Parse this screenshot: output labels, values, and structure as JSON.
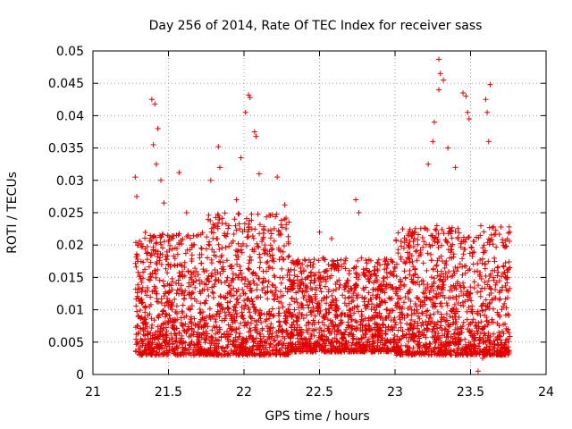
{
  "chart_data": {
    "type": "scatter",
    "title": "Day 256 of 2014, Rate Of TEC Index for receiver sass",
    "xlabel": "GPS time / hours",
    "ylabel": "ROTI / TECUs",
    "xlim": [
      21,
      24
    ],
    "ylim": [
      0,
      0.05
    ],
    "x_ticks": [
      "21",
      "21.5",
      "22",
      "22.5",
      "23",
      "23.5",
      "24"
    ],
    "y_ticks": [
      "0",
      "0.005",
      "0.01",
      "0.015",
      "0.02",
      "0.025",
      "0.03",
      "0.035",
      "0.04",
      "0.045",
      "0.05"
    ],
    "grid": true,
    "marker": "plus",
    "series_color": "#e00000",
    "x_range_of_points": [
      21.28,
      21.76
    ],
    "x_range_of_points_2": [
      21.76,
      23.0
    ],
    "x_range_of_points_3": [
      23.0,
      23.76
    ],
    "notable_points": [
      {
        "x": 21.28,
        "y": 0.0305
      },
      {
        "x": 21.29,
        "y": 0.0275
      },
      {
        "x": 21.39,
        "y": 0.0425
      },
      {
        "x": 21.41,
        "y": 0.0418
      },
      {
        "x": 21.43,
        "y": 0.038
      },
      {
        "x": 21.4,
        "y": 0.0355
      },
      {
        "x": 21.42,
        "y": 0.0325
      },
      {
        "x": 21.45,
        "y": 0.03
      },
      {
        "x": 21.47,
        "y": 0.0265
      },
      {
        "x": 21.57,
        "y": 0.0312
      },
      {
        "x": 21.62,
        "y": 0.025
      },
      {
        "x": 21.78,
        "y": 0.03
      },
      {
        "x": 21.83,
        "y": 0.0352
      },
      {
        "x": 21.84,
        "y": 0.032
      },
      {
        "x": 21.95,
        "y": 0.027
      },
      {
        "x": 21.98,
        "y": 0.0335
      },
      {
        "x": 22.01,
        "y": 0.0405
      },
      {
        "x": 22.03,
        "y": 0.0432
      },
      {
        "x": 22.04,
        "y": 0.0428
      },
      {
        "x": 22.07,
        "y": 0.0375
      },
      {
        "x": 22.08,
        "y": 0.0368
      },
      {
        "x": 22.1,
        "y": 0.031
      },
      {
        "x": 22.22,
        "y": 0.0305
      },
      {
        "x": 22.27,
        "y": 0.0262
      },
      {
        "x": 22.5,
        "y": 0.022
      },
      {
        "x": 22.58,
        "y": 0.021
      },
      {
        "x": 22.74,
        "y": 0.027
      },
      {
        "x": 22.76,
        "y": 0.025
      },
      {
        "x": 22.98,
        "y": 0.0175
      },
      {
        "x": 23.02,
        "y": 0.0035
      },
      {
        "x": 23.05,
        "y": 0.0225
      },
      {
        "x": 23.22,
        "y": 0.0325
      },
      {
        "x": 23.26,
        "y": 0.039
      },
      {
        "x": 23.25,
        "y": 0.036
      },
      {
        "x": 23.29,
        "y": 0.0487
      },
      {
        "x": 23.3,
        "y": 0.0465
      },
      {
        "x": 23.32,
        "y": 0.0455
      },
      {
        "x": 23.29,
        "y": 0.044
      },
      {
        "x": 23.35,
        "y": 0.035
      },
      {
        "x": 23.4,
        "y": 0.032
      },
      {
        "x": 23.45,
        "y": 0.0435
      },
      {
        "x": 23.47,
        "y": 0.043
      },
      {
        "x": 23.49,
        "y": 0.0395
      },
      {
        "x": 23.48,
        "y": 0.0405
      },
      {
        "x": 23.55,
        "y": 0.0005
      },
      {
        "x": 23.58,
        "y": 0.0025
      },
      {
        "x": 23.6,
        "y": 0.0425
      },
      {
        "x": 23.61,
        "y": 0.0405
      },
      {
        "x": 23.62,
        "y": 0.036
      },
      {
        "x": 23.63,
        "y": 0.0448
      },
      {
        "x": 23.74,
        "y": 0.015
      }
    ],
    "dense_bands": [
      {
        "x_from": 21.28,
        "x_to": 21.76,
        "y_from": 0.003,
        "y_to": 0.022
      },
      {
        "x_from": 21.76,
        "x_to": 22.3,
        "y_from": 0.003,
        "y_to": 0.025
      },
      {
        "x_from": 22.3,
        "x_to": 23.0,
        "y_from": 0.0035,
        "y_to": 0.018
      },
      {
        "x_from": 23.0,
        "x_to": 23.76,
        "y_from": 0.003,
        "y_to": 0.023
      }
    ]
  }
}
